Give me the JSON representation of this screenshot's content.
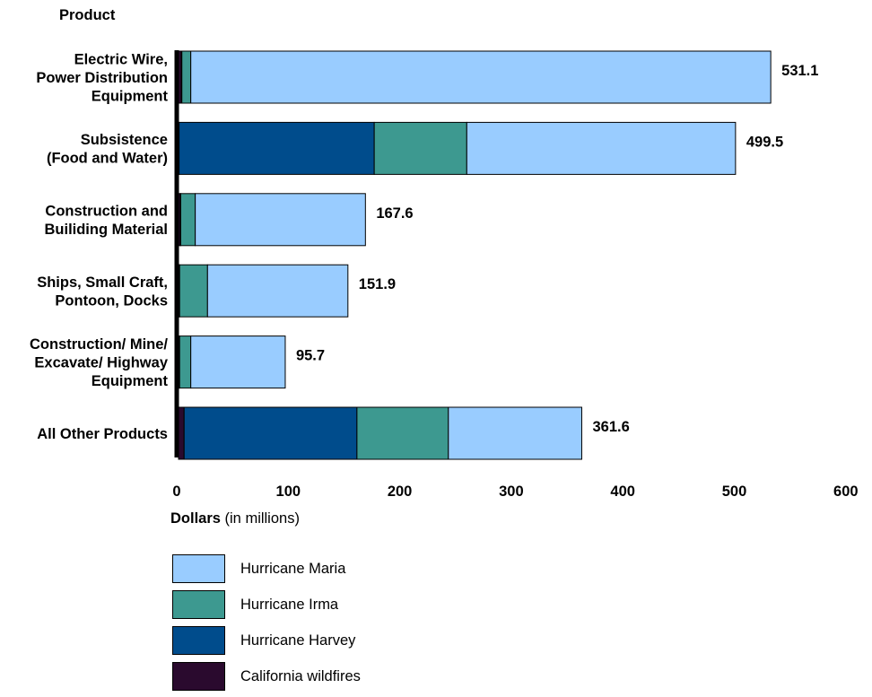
{
  "chart_data": {
    "type": "bar",
    "orientation": "horizontal",
    "stacked": true,
    "ylabel": "Product",
    "xlabel_bold": "Dollars",
    "xlabel_rest": " (in millions)",
    "xlim": [
      0,
      600
    ],
    "xticks": [
      "0",
      "100",
      "200",
      "300",
      "400",
      "500",
      "600"
    ],
    "categories": [
      [
        "Electric Wire,",
        "Power Distribution",
        "Equipment"
      ],
      [
        "Subsistence",
        "(Food and Water)"
      ],
      [
        "Construction and",
        "Builiding Material"
      ],
      [
        "Ships, Small Craft,",
        "Pontoon, Docks"
      ],
      [
        "Construction/ Mine/",
        "Excavate/ Highway",
        "Equipment"
      ],
      [
        "All Other Products"
      ]
    ],
    "totals": [
      "531.1",
      "499.5",
      "167.6",
      "151.9",
      "95.7",
      "361.6"
    ],
    "series": [
      {
        "name": "California wildfires",
        "color": "#2a0a2e",
        "values": [
          2.5,
          0.5,
          1.5,
          0.5,
          0.5,
          5
        ]
      },
      {
        "name": "Hurricane Harvey",
        "color": "#004c8c",
        "values": [
          0.5,
          175,
          0.5,
          0.5,
          0.5,
          155
        ]
      },
      {
        "name": "Hurricane Irma",
        "color": "#3d9990",
        "values": [
          8,
          83,
          13,
          25,
          10,
          82
        ]
      },
      {
        "name": "Hurricane Maria",
        "color": "#99ccff",
        "values": [
          520.1,
          241,
          152.6,
          125.9,
          84.7,
          119.6
        ]
      }
    ],
    "legend_order": [
      "Hurricane Maria",
      "Hurricane Irma",
      "Hurricane Harvey",
      "California wildfires"
    ],
    "legend_position": "bottom-left"
  }
}
